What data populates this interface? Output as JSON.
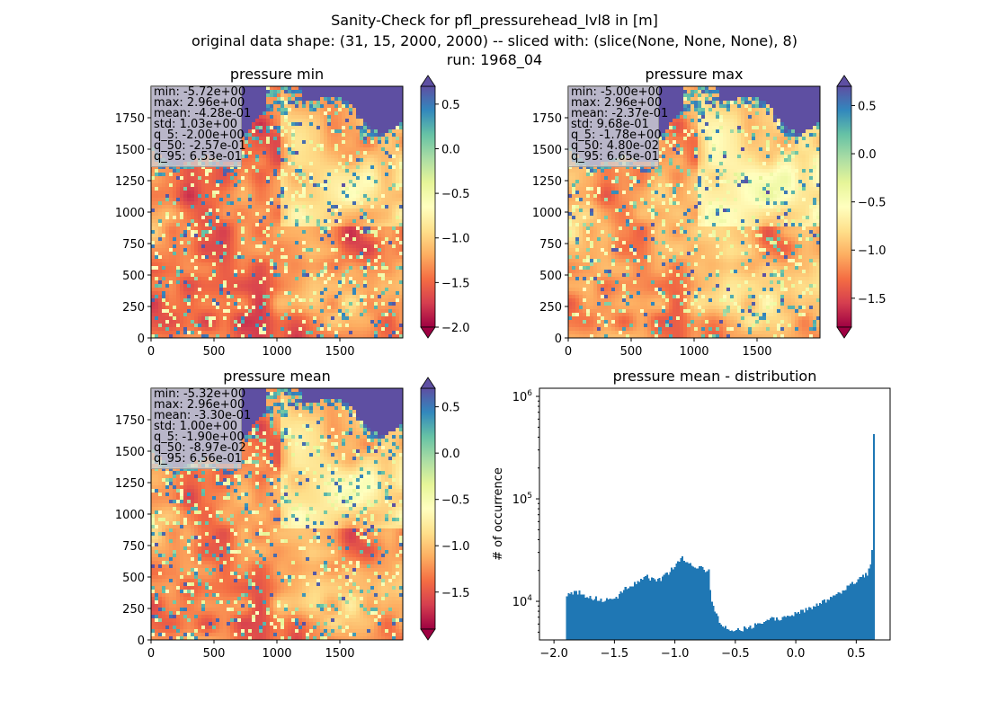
{
  "figure": {
    "title_lines": [
      "Sanity-Check for pfl_pressurehead_lvl8 in [m]",
      "original data shape: (31, 15, 2000, 2000) -- sliced with: (slice(None, None, None), 8)",
      "run: 1968_04"
    ]
  },
  "colors": {
    "colormap": "Spectral",
    "histogram_bar": "#1f77b4",
    "stats_box_bg": "#d3d3d3"
  },
  "chart_data": [
    {
      "type": "heatmap",
      "title": "pressure min",
      "xlim": [
        0,
        2000
      ],
      "ylim": [
        0,
        2000
      ],
      "xticks": [
        "0",
        "500",
        "1000",
        "1500"
      ],
      "yticks": [
        "0",
        "250",
        "500",
        "750",
        "1000",
        "1250",
        "1500",
        "1750"
      ],
      "colorbar": {
        "vmin": -2.0,
        "vmax": 0.7,
        "ticks": [
          "0.5",
          "0.0",
          "−0.5",
          "−1.0",
          "−1.5",
          "−2.0"
        ],
        "extend": "both"
      },
      "stats": [
        "min: -5.72e+00",
        "max: 2.96e+00",
        "mean: -4.28e-01",
        "std: 1.03e+00",
        "q_5: -2.00e+00",
        "q_50: -2.57e-01",
        "q_95: 6.53e-01"
      ]
    },
    {
      "type": "heatmap",
      "title": "pressure max",
      "xlim": [
        0,
        2000
      ],
      "ylim": [
        0,
        2000
      ],
      "xticks": [
        "0",
        "500",
        "1000",
        "1500"
      ],
      "yticks": [
        "0",
        "250",
        "500",
        "750",
        "1000",
        "1250",
        "1500",
        "1750"
      ],
      "colorbar": {
        "vmin": -1.8,
        "vmax": 0.7,
        "ticks": [
          "0.5",
          "0.0",
          "−0.5",
          "−1.0",
          "−1.5"
        ],
        "extend": "both"
      },
      "stats": [
        "min: -5.00e+00",
        "max: 2.96e+00",
        "mean: -2.37e-01",
        "std: 9.68e-01",
        "q_5: -1.78e+00",
        "q_50: 4.80e-02",
        "q_95: 6.65e-01"
      ]
    },
    {
      "type": "heatmap",
      "title": "pressure mean",
      "xlim": [
        0,
        2000
      ],
      "ylim": [
        0,
        2000
      ],
      "xticks": [
        "0",
        "500",
        "1000",
        "1500"
      ],
      "yticks": [
        "0",
        "250",
        "500",
        "750",
        "1000",
        "1250",
        "1500",
        "1750"
      ],
      "colorbar": {
        "vmin": -1.9,
        "vmax": 0.7,
        "ticks": [
          "0.5",
          "0.0",
          "−0.5",
          "−1.0",
          "−1.5"
        ],
        "extend": "both"
      },
      "stats": [
        "min: -5.32e+00",
        "max: 2.96e+00",
        "mean: -3.30e-01",
        "std: 1.00e+00",
        "q_5: -1.90e+00",
        "q_50: -8.97e-02",
        "q_95: 6.56e-01"
      ]
    },
    {
      "type": "bar",
      "title": "pressure mean - distribution",
      "ylabel": "# of occurrence",
      "yscale": "log",
      "xlim": [
        -2.12,
        0.78
      ],
      "ylim": [
        4200,
        1200000
      ],
      "xticks": [
        -2.0,
        -1.5,
        -1.0,
        -0.5,
        0.0,
        0.5
      ],
      "xtick_labels": [
        "−2.0",
        "−1.5",
        "−1.0",
        "−0.5",
        "0.0",
        "0.5"
      ],
      "yticks": [
        {
          "value": 10000,
          "mantissa": "10",
          "exp": "4"
        },
        {
          "value": 100000,
          "mantissa": "10",
          "exp": "5"
        },
        {
          "value": 1000000,
          "mantissa": "10",
          "exp": "6"
        }
      ],
      "bin_range": [
        -1.9,
        0.65
      ],
      "profile_x": [
        -1.9,
        -1.8,
        -1.7,
        -1.6,
        -1.5,
        -1.42,
        -1.35,
        -1.3,
        -1.25,
        -1.15,
        -1.05,
        -0.95,
        -0.85,
        -0.8,
        -0.72,
        -0.7,
        -0.65,
        -0.6,
        -0.55,
        -0.5,
        -0.4,
        -0.3,
        -0.2,
        -0.1,
        0.0,
        0.1,
        0.2,
        0.3,
        0.4,
        0.5,
        0.55,
        0.58,
        0.6,
        0.62,
        0.63,
        0.64,
        0.645,
        0.65
      ],
      "profile_y": [
        11500,
        12200,
        11000,
        10200,
        10500,
        13000,
        14500,
        15500,
        17500,
        15500,
        19000,
        27000,
        23000,
        21000,
        20000,
        10000,
        7000,
        5800,
        5300,
        5200,
        5500,
        6000,
        6600,
        7000,
        7500,
        8300,
        9500,
        11000,
        13000,
        16000,
        17500,
        18500,
        19000,
        22000,
        30000,
        60000,
        880000,
        230000
      ]
    }
  ]
}
